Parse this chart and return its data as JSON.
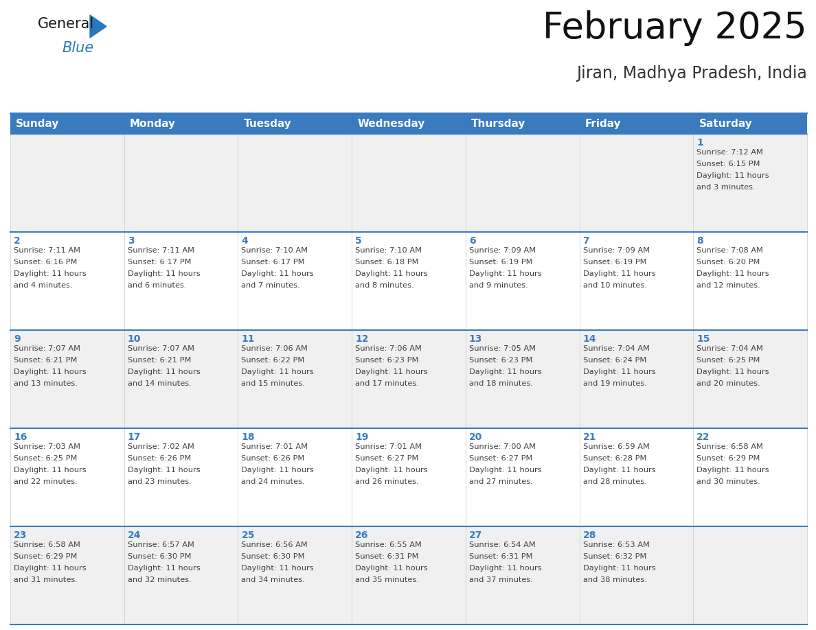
{
  "title": "February 2025",
  "subtitle": "Jiran, Madhya Pradesh, India",
  "days_of_week": [
    "Sunday",
    "Monday",
    "Tuesday",
    "Wednesday",
    "Thursday",
    "Friday",
    "Saturday"
  ],
  "header_bg": "#3a7abf",
  "header_text": "#ffffff",
  "cell_bg_odd": "#f0f0f0",
  "cell_bg_even": "#ffffff",
  "border_color": "#3a7abf",
  "day_num_color": "#3a7abf",
  "text_color": "#404040",
  "calendar_data": [
    [
      null,
      null,
      null,
      null,
      null,
      null,
      {
        "day": 1,
        "sunrise": "7:12 AM",
        "sunset": "6:15 PM",
        "daylight": "11 hours and 3 minutes."
      }
    ],
    [
      {
        "day": 2,
        "sunrise": "7:11 AM",
        "sunset": "6:16 PM",
        "daylight": "11 hours and 4 minutes."
      },
      {
        "day": 3,
        "sunrise": "7:11 AM",
        "sunset": "6:17 PM",
        "daylight": "11 hours and 6 minutes."
      },
      {
        "day": 4,
        "sunrise": "7:10 AM",
        "sunset": "6:17 PM",
        "daylight": "11 hours and 7 minutes."
      },
      {
        "day": 5,
        "sunrise": "7:10 AM",
        "sunset": "6:18 PM",
        "daylight": "11 hours and 8 minutes."
      },
      {
        "day": 6,
        "sunrise": "7:09 AM",
        "sunset": "6:19 PM",
        "daylight": "11 hours and 9 minutes."
      },
      {
        "day": 7,
        "sunrise": "7:09 AM",
        "sunset": "6:19 PM",
        "daylight": "11 hours and 10 minutes."
      },
      {
        "day": 8,
        "sunrise": "7:08 AM",
        "sunset": "6:20 PM",
        "daylight": "11 hours and 12 minutes."
      }
    ],
    [
      {
        "day": 9,
        "sunrise": "7:07 AM",
        "sunset": "6:21 PM",
        "daylight": "11 hours and 13 minutes."
      },
      {
        "day": 10,
        "sunrise": "7:07 AM",
        "sunset": "6:21 PM",
        "daylight": "11 hours and 14 minutes."
      },
      {
        "day": 11,
        "sunrise": "7:06 AM",
        "sunset": "6:22 PM",
        "daylight": "11 hours and 15 minutes."
      },
      {
        "day": 12,
        "sunrise": "7:06 AM",
        "sunset": "6:23 PM",
        "daylight": "11 hours and 17 minutes."
      },
      {
        "day": 13,
        "sunrise": "7:05 AM",
        "sunset": "6:23 PM",
        "daylight": "11 hours and 18 minutes."
      },
      {
        "day": 14,
        "sunrise": "7:04 AM",
        "sunset": "6:24 PM",
        "daylight": "11 hours and 19 minutes."
      },
      {
        "day": 15,
        "sunrise": "7:04 AM",
        "sunset": "6:25 PM",
        "daylight": "11 hours and 20 minutes."
      }
    ],
    [
      {
        "day": 16,
        "sunrise": "7:03 AM",
        "sunset": "6:25 PM",
        "daylight": "11 hours and 22 minutes."
      },
      {
        "day": 17,
        "sunrise": "7:02 AM",
        "sunset": "6:26 PM",
        "daylight": "11 hours and 23 minutes."
      },
      {
        "day": 18,
        "sunrise": "7:01 AM",
        "sunset": "6:26 PM",
        "daylight": "11 hours and 24 minutes."
      },
      {
        "day": 19,
        "sunrise": "7:01 AM",
        "sunset": "6:27 PM",
        "daylight": "11 hours and 26 minutes."
      },
      {
        "day": 20,
        "sunrise": "7:00 AM",
        "sunset": "6:27 PM",
        "daylight": "11 hours and 27 minutes."
      },
      {
        "day": 21,
        "sunrise": "6:59 AM",
        "sunset": "6:28 PM",
        "daylight": "11 hours and 28 minutes."
      },
      {
        "day": 22,
        "sunrise": "6:58 AM",
        "sunset": "6:29 PM",
        "daylight": "11 hours and 30 minutes."
      }
    ],
    [
      {
        "day": 23,
        "sunrise": "6:58 AM",
        "sunset": "6:29 PM",
        "daylight": "11 hours and 31 minutes."
      },
      {
        "day": 24,
        "sunrise": "6:57 AM",
        "sunset": "6:30 PM",
        "daylight": "11 hours and 32 minutes."
      },
      {
        "day": 25,
        "sunrise": "6:56 AM",
        "sunset": "6:30 PM",
        "daylight": "11 hours and 34 minutes."
      },
      {
        "day": 26,
        "sunrise": "6:55 AM",
        "sunset": "6:31 PM",
        "daylight": "11 hours and 35 minutes."
      },
      {
        "day": 27,
        "sunrise": "6:54 AM",
        "sunset": "6:31 PM",
        "daylight": "11 hours and 37 minutes."
      },
      {
        "day": 28,
        "sunrise": "6:53 AM",
        "sunset": "6:32 PM",
        "daylight": "11 hours and 38 minutes."
      },
      null
    ]
  ],
  "title_fontsize": 38,
  "subtitle_fontsize": 17,
  "header_fontsize": 11,
  "day_num_fontsize": 10,
  "cell_text_fontsize": 8.2
}
